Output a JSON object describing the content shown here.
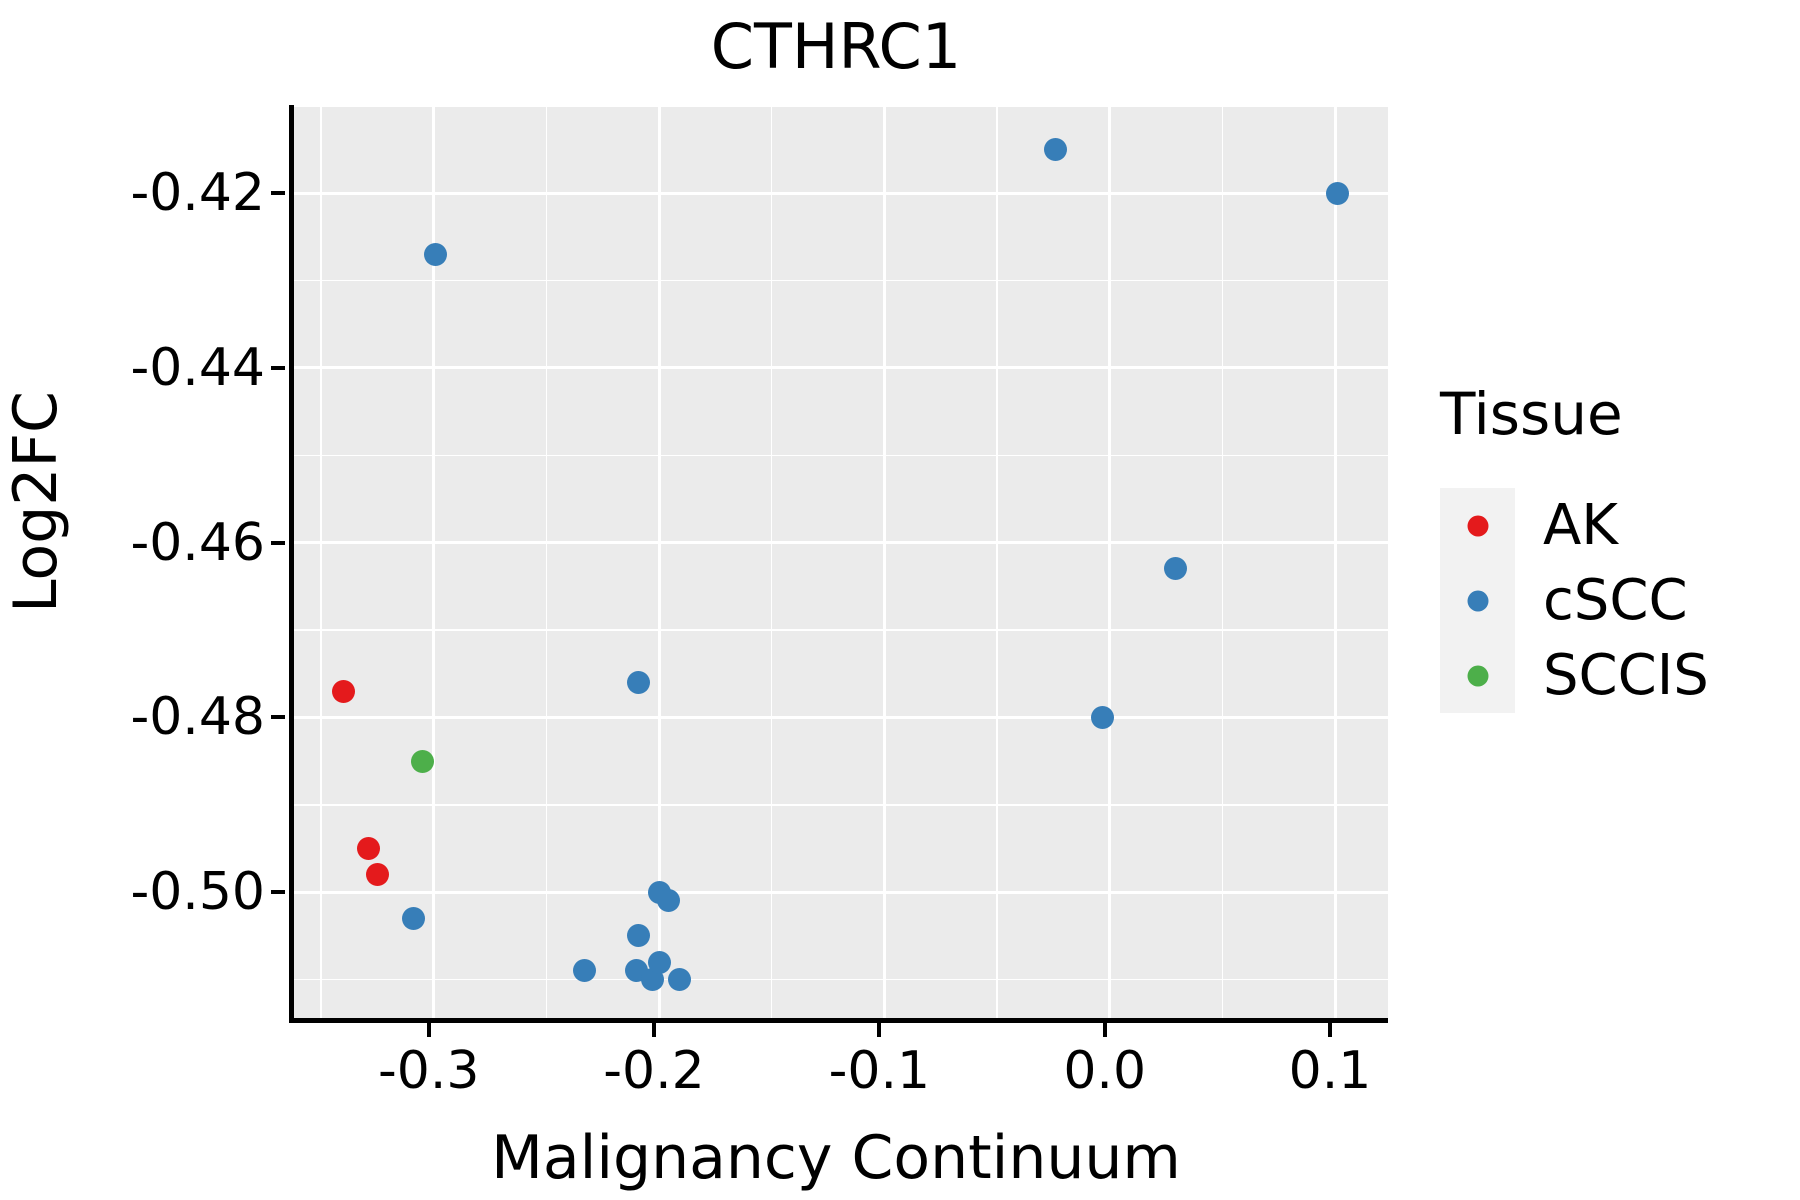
{
  "figure": {
    "title": "CTHRC1",
    "x_axis_title": "Malignancy Continuum",
    "y_axis_title": "Log2FC"
  },
  "legend": {
    "title": "Tissue",
    "position": "right",
    "entries": [
      {
        "label": "AK",
        "color": "#E41A1C"
      },
      {
        "label": "cSCC",
        "color": "#377EB8"
      },
      {
        "label": "SCCIS",
        "color": "#4DAF4A"
      }
    ]
  },
  "colors": {
    "panel_background": "#EBEBEB",
    "legend_key_background": "#F2F2F2",
    "gridline": "#FFFFFF",
    "axis_line": "#000000",
    "ak_red": "#E41A1C",
    "cscc_blue": "#377EB8",
    "sccis_green": "#4DAF4A"
  },
  "chart_data": {
    "type": "scatter",
    "title": "CTHRC1",
    "xlabel": "Malignancy Continuum",
    "ylabel": "Log2FC",
    "xlim": [
      -0.362,
      0.1235
    ],
    "ylim": [
      -0.5144,
      -0.4099
    ],
    "grid": "major and minor white gridlines on gray panel",
    "legend_position": "right",
    "x_ticks": [
      {
        "value": -0.3,
        "label": "-0.3"
      },
      {
        "value": -0.2,
        "label": "-0.2"
      },
      {
        "value": -0.1,
        "label": "-0.1"
      },
      {
        "value": 0.0,
        "label": "0.0"
      },
      {
        "value": 0.1,
        "label": "0.1"
      }
    ],
    "y_ticks": [
      {
        "value": -0.42,
        "label": "-0.42"
      },
      {
        "value": -0.44,
        "label": "-0.44"
      },
      {
        "value": -0.46,
        "label": "-0.46"
      },
      {
        "value": -0.48,
        "label": "-0.48"
      },
      {
        "value": -0.5,
        "label": "-0.50"
      }
    ],
    "x_minor_ticks": [
      -0.35,
      -0.25,
      -0.15,
      -0.05,
      0.05
    ],
    "y_minor_ticks": [
      -0.41,
      -0.43,
      -0.45,
      -0.47,
      -0.49,
      -0.51
    ],
    "series": [
      {
        "name": "AK",
        "color": "#E41A1C",
        "points": [
          [
            -0.34,
            -0.477
          ],
          [
            -0.329,
            -0.495
          ],
          [
            -0.325,
            -0.498
          ]
        ]
      },
      {
        "name": "cSCC",
        "color": "#377EB8",
        "points": [
          [
            -0.299,
            -0.427
          ],
          [
            -0.024,
            -0.415
          ],
          [
            0.101,
            -0.42
          ],
          [
            0.029,
            -0.463
          ],
          [
            -0.003,
            -0.48
          ],
          [
            -0.309,
            -0.503
          ],
          [
            -0.209,
            -0.476
          ],
          [
            -0.209,
            -0.505
          ],
          [
            -0.233,
            -0.509
          ],
          [
            -0.2,
            -0.5
          ],
          [
            -0.196,
            -0.501
          ],
          [
            -0.21,
            -0.509
          ],
          [
            -0.203,
            -0.51
          ],
          [
            -0.2,
            -0.508
          ],
          [
            -0.191,
            -0.51
          ]
        ]
      },
      {
        "name": "SCCIS",
        "color": "#4DAF4A",
        "points": [
          [
            -0.305,
            -0.485
          ]
        ]
      }
    ]
  }
}
